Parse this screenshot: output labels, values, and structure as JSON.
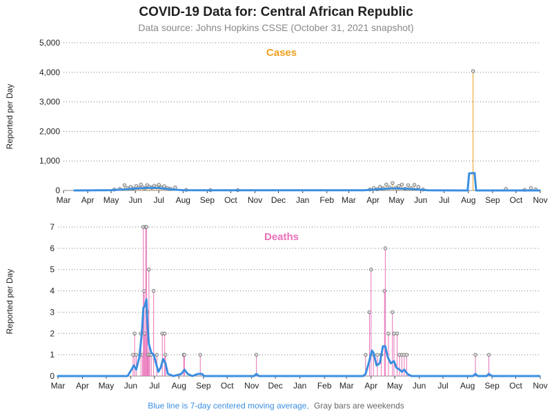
{
  "title": "COVID-19 Data for: Central African Republic",
  "subtitle": "Data source: Johns Hopkins CSSE (October 31, 2021 snapshot)",
  "footnote": {
    "part1": "Blue line is 7-day centered moving average,",
    "part2": "Gray bars are weekends"
  },
  "colors": {
    "cases": "#f0a020",
    "deaths": "#e870b8",
    "moving_average": "#3a8ee0",
    "weekend": "#888888",
    "grid": "#777777"
  },
  "chart_data": [
    {
      "type": "line",
      "title": "Cases",
      "ylabel": "Reported per Day",
      "ylim": [
        0,
        5000
      ],
      "yticks": [
        "0",
        "1,000",
        "2,000",
        "3,000",
        "4,000",
        "5,000"
      ],
      "ytick_values": [
        0,
        1000,
        2000,
        3000,
        4000,
        5000
      ],
      "xlim": [
        "2020-03-01",
        "2021-11-01"
      ],
      "xticks": [
        "Mar",
        "Apr",
        "May",
        "Jun",
        "Jul",
        "Aug",
        "Sep",
        "Oct",
        "Nov",
        "Dec",
        "Jan",
        "Feb",
        "Mar",
        "Apr",
        "May",
        "Jun",
        "Jul",
        "Aug",
        "Sep",
        "Oct",
        "Nov"
      ],
      "xtick_dates": [
        "2020-03-01",
        "2020-04-01",
        "2020-05-01",
        "2020-06-01",
        "2020-07-01",
        "2020-08-01",
        "2020-09-01",
        "2020-10-01",
        "2020-11-01",
        "2020-12-01",
        "2021-01-01",
        "2021-02-01",
        "2021-03-01",
        "2021-04-01",
        "2021-05-01",
        "2021-06-01",
        "2021-07-01",
        "2021-08-01",
        "2021-09-01",
        "2021-10-01",
        "2021-11-01"
      ],
      "grid": "horizontal",
      "series": [
        {
          "values": [
            [
              "2020-05-05",
              30
            ],
            [
              "2020-05-12",
              50
            ],
            [
              "2020-05-18",
              180
            ],
            [
              "2020-05-22",
              80
            ],
            [
              "2020-05-26",
              120
            ],
            [
              "2020-05-29",
              60
            ],
            [
              "2020-06-02",
              150
            ],
            [
              "2020-06-05",
              90
            ],
            [
              "2020-06-08",
              200
            ],
            [
              "2020-06-10",
              110
            ],
            [
              "2020-06-13",
              70
            ],
            [
              "2020-06-16",
              180
            ],
            [
              "2020-06-19",
              130
            ],
            [
              "2020-06-22",
              90
            ],
            [
              "2020-06-25",
              160
            ],
            [
              "2020-06-28",
              120
            ],
            [
              "2020-07-01",
              190
            ],
            [
              "2020-07-04",
              100
            ],
            [
              "2020-07-08",
              140
            ],
            [
              "2020-07-12",
              80
            ],
            [
              "2020-07-16",
              60
            ],
            [
              "2020-07-22",
              100
            ],
            [
              "2020-08-05",
              20
            ],
            [
              "2020-09-05",
              10
            ],
            [
              "2020-10-10",
              10
            ],
            [
              "2021-03-28",
              30
            ],
            [
              "2021-04-02",
              80
            ],
            [
              "2021-04-06",
              40
            ],
            [
              "2021-04-10",
              120
            ],
            [
              "2021-04-14",
              70
            ],
            [
              "2021-04-18",
              200
            ],
            [
              "2021-04-22",
              110
            ],
            [
              "2021-04-26",
              250
            ],
            [
              "2021-04-30",
              90
            ],
            [
              "2021-05-04",
              150
            ],
            [
              "2021-05-08",
              200
            ],
            [
              "2021-05-12",
              60
            ],
            [
              "2021-05-16",
              180
            ],
            [
              "2021-05-20",
              80
            ],
            [
              "2021-05-24",
              190
            ],
            [
              "2021-05-29",
              120
            ],
            [
              "2021-06-04",
              30
            ],
            [
              "2021-08-07",
              4040
            ],
            [
              "2021-09-18",
              50
            ],
            [
              "2021-10-12",
              20
            ],
            [
              "2021-10-20",
              80
            ],
            [
              "2021-10-26",
              30
            ]
          ]
        }
      ],
      "moving_average": [
        [
          "2020-03-15",
          0
        ],
        [
          "2020-05-01",
          10
        ],
        [
          "2020-05-20",
          40
        ],
        [
          "2020-06-05",
          70
        ],
        [
          "2020-06-20",
          90
        ],
        [
          "2020-07-01",
          80
        ],
        [
          "2020-07-15",
          40
        ],
        [
          "2020-08-01",
          10
        ],
        [
          "2020-09-01",
          5
        ],
        [
          "2021-03-20",
          5
        ],
        [
          "2021-04-10",
          40
        ],
        [
          "2021-04-25",
          70
        ],
        [
          "2021-05-10",
          60
        ],
        [
          "2021-05-25",
          40
        ],
        [
          "2021-06-10",
          5
        ],
        [
          "2021-07-28",
          0
        ],
        [
          "2021-07-31",
          0
        ],
        [
          "2021-08-02",
          580
        ],
        [
          "2021-08-09",
          590
        ],
        [
          "2021-08-11",
          0
        ],
        [
          "2021-10-31",
          0
        ]
      ]
    },
    {
      "type": "line",
      "title": "Deaths",
      "ylabel": "Reported per Day",
      "ylim": [
        0,
        7
      ],
      "yticks": [
        "0",
        "1",
        "2",
        "3",
        "4",
        "5",
        "6",
        "7"
      ],
      "ytick_values": [
        0,
        1,
        2,
        3,
        4,
        5,
        6,
        7
      ],
      "xlim": [
        "2020-03-01",
        "2021-11-01"
      ],
      "xticks": [
        "Mar",
        "Apr",
        "May",
        "Jun",
        "Jul",
        "Aug",
        "Sep",
        "Oct",
        "Nov",
        "Dec",
        "Jan",
        "Feb",
        "Mar",
        "Apr",
        "May",
        "Jun",
        "Jul",
        "Aug",
        "Sep",
        "Oct",
        "Nov"
      ],
      "xtick_dates": [
        "2020-03-01",
        "2020-04-01",
        "2020-05-01",
        "2020-06-01",
        "2020-07-01",
        "2020-08-01",
        "2020-09-01",
        "2020-10-01",
        "2020-11-01",
        "2020-12-01",
        "2021-01-01",
        "2021-02-01",
        "2021-03-01",
        "2021-04-01",
        "2021-05-01",
        "2021-06-01",
        "2021-07-01",
        "2021-08-01",
        "2021-09-01",
        "2021-10-01",
        "2021-11-01"
      ],
      "grid": "horizontal",
      "series": [
        {
          "values": [
            [
              "2020-06-04",
              1
            ],
            [
              "2020-06-06",
              2
            ],
            [
              "2020-06-08",
              1
            ],
            [
              "2020-06-14",
              2
            ],
            [
              "2020-06-16",
              1
            ],
            [
              "2020-06-17",
              7
            ],
            [
              "2020-06-18",
              4
            ],
            [
              "2020-06-19",
              2
            ],
            [
              "2020-06-20",
              7
            ],
            [
              "2020-06-21",
              7
            ],
            [
              "2020-06-22",
              3
            ],
            [
              "2020-06-23",
              1
            ],
            [
              "2020-06-24",
              5
            ],
            [
              "2020-06-25",
              1
            ],
            [
              "2020-06-27",
              1
            ],
            [
              "2020-06-30",
              4
            ],
            [
              "2020-07-04",
              1
            ],
            [
              "2020-07-11",
              2
            ],
            [
              "2020-07-14",
              2
            ],
            [
              "2020-07-15",
              1
            ],
            [
              "2020-08-07",
              1
            ],
            [
              "2020-08-08",
              1
            ],
            [
              "2020-08-28",
              1
            ],
            [
              "2020-11-07",
              1
            ],
            [
              "2021-03-25",
              1
            ],
            [
              "2021-03-30",
              3
            ],
            [
              "2021-04-01",
              5
            ],
            [
              "2021-04-04",
              1
            ],
            [
              "2021-04-09",
              1
            ],
            [
              "2021-04-14",
              1
            ],
            [
              "2021-04-18",
              4
            ],
            [
              "2021-04-19",
              6
            ],
            [
              "2021-04-23",
              2
            ],
            [
              "2021-04-28",
              3
            ],
            [
              "2021-04-30",
              2
            ],
            [
              "2021-05-04",
              2
            ],
            [
              "2021-05-07",
              1
            ],
            [
              "2021-05-10",
              1
            ],
            [
              "2021-05-13",
              1
            ],
            [
              "2021-05-16",
              1
            ],
            [
              "2021-08-11",
              1
            ],
            [
              "2021-08-28",
              1
            ]
          ]
        }
      ],
      "moving_average": [
        [
          "2020-03-01",
          0
        ],
        [
          "2020-05-28",
          0
        ],
        [
          "2020-06-02",
          0.3
        ],
        [
          "2020-06-05",
          0.5
        ],
        [
          "2020-06-08",
          0.3
        ],
        [
          "2020-06-12",
          0.9
        ],
        [
          "2020-06-15",
          2.0
        ],
        [
          "2020-06-17",
          3.2
        ],
        [
          "2020-06-19",
          3.3
        ],
        [
          "2020-06-21",
          3.6
        ],
        [
          "2020-06-22",
          2.6
        ],
        [
          "2020-06-24",
          1.5
        ],
        [
          "2020-06-27",
          1.1
        ],
        [
          "2020-06-30",
          1.0
        ],
        [
          "2020-07-03",
          0.6
        ],
        [
          "2020-07-06",
          0.2
        ],
        [
          "2020-07-09",
          0.4
        ],
        [
          "2020-07-12",
          0.8
        ],
        [
          "2020-07-15",
          0.6
        ],
        [
          "2020-07-18",
          0.1
        ],
        [
          "2020-07-25",
          0
        ],
        [
          "2020-08-04",
          0.1
        ],
        [
          "2020-08-08",
          0.3
        ],
        [
          "2020-08-12",
          0.1
        ],
        [
          "2020-08-18",
          0
        ],
        [
          "2020-08-25",
          0.1
        ],
        [
          "2020-08-30",
          0.1
        ],
        [
          "2020-09-02",
          0
        ],
        [
          "2020-11-04",
          0
        ],
        [
          "2020-11-07",
          0.1
        ],
        [
          "2020-11-10",
          0
        ],
        [
          "2021-03-22",
          0
        ],
        [
          "2021-03-25",
          0.1
        ],
        [
          "2021-03-29",
          0.6
        ],
        [
          "2021-04-02",
          1.2
        ],
        [
          "2021-04-04",
          1.1
        ],
        [
          "2021-04-08",
          0.5
        ],
        [
          "2021-04-12",
          0.6
        ],
        [
          "2021-04-16",
          1.4
        ],
        [
          "2021-04-19",
          1.4
        ],
        [
          "2021-04-22",
          0.9
        ],
        [
          "2021-04-26",
          0.6
        ],
        [
          "2021-04-30",
          0.7
        ],
        [
          "2021-05-03",
          0.4
        ],
        [
          "2021-05-07",
          0.3
        ],
        [
          "2021-05-10",
          0.2
        ],
        [
          "2021-05-13",
          0.3
        ],
        [
          "2021-05-17",
          0.1
        ],
        [
          "2021-05-22",
          0
        ],
        [
          "2021-08-08",
          0
        ],
        [
          "2021-08-11",
          0.1
        ],
        [
          "2021-08-14",
          0
        ],
        [
          "2021-08-25",
          0
        ],
        [
          "2021-08-28",
          0.1
        ],
        [
          "2021-09-01",
          0
        ],
        [
          "2021-10-31",
          0
        ]
      ]
    }
  ]
}
